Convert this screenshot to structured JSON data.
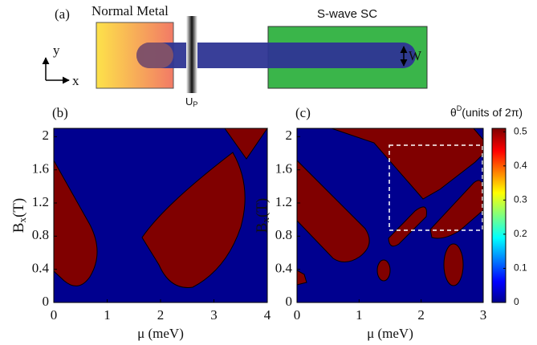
{
  "schematic": {
    "label": "(a)",
    "normal_metal": "Normal Metal",
    "sc": "S-wave SC",
    "y_axis": "y",
    "x_axis": "x",
    "width": "W",
    "barrier": {
      "main": "U",
      "sub": "P"
    }
  },
  "chart_data": [
    {
      "type": "phase",
      "panel": "(b)",
      "xlabel": "μ (meV)",
      "ylabel": {
        "main": "B",
        "sub": "x",
        "unit": "(T)"
      },
      "xlim": [
        0,
        4
      ],
      "ylim": [
        0,
        2.1
      ],
      "xticks": [
        0,
        1,
        2,
        3,
        4
      ],
      "yticks": [
        0,
        0.4,
        0.8,
        1.2,
        1.6,
        2
      ]
    },
    {
      "type": "phase",
      "panel": "(c)",
      "xlabel": "μ (meV)",
      "ylabel": {
        "main": "B",
        "sub": "x",
        "unit": "(T)"
      },
      "xlim": [
        0,
        3
      ],
      "ylim": [
        0,
        2.1
      ],
      "xticks": [
        0,
        1,
        2,
        3
      ],
      "yticks": [
        0,
        0.4,
        0.8,
        1.2,
        1.6,
        2
      ],
      "colorbar": {
        "label": {
          "main": "θ",
          "sup": "D",
          "unit": "(units of 2π)"
        },
        "lim": [
          0,
          0.51
        ],
        "ticks": [
          0,
          0.1,
          0.2,
          0.3,
          0.4,
          0.5
        ]
      }
    }
  ]
}
